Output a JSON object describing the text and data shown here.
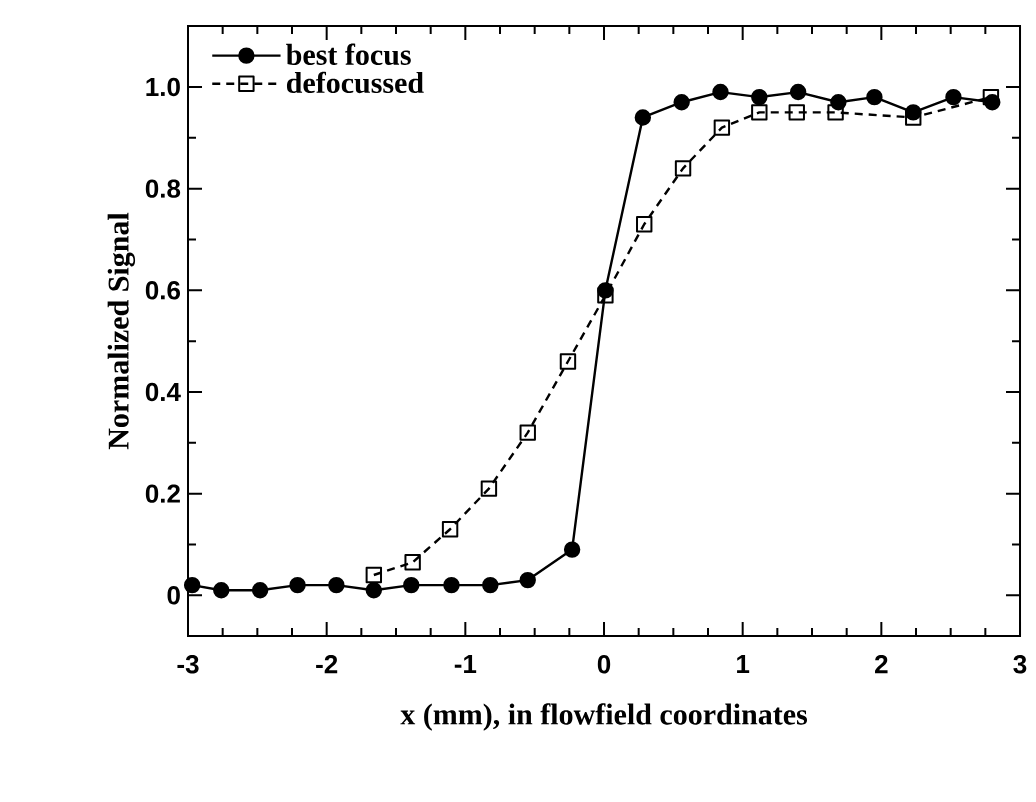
{
  "chart_data": {
    "type": "line",
    "xlabel": "x (mm), in flowfield coordinates",
    "ylabel": "Normalized Signal",
    "xlim": [
      -3,
      3
    ],
    "ylim": [
      -0.08,
      1.12
    ],
    "xticks": [
      -3,
      -2,
      -1,
      0,
      1,
      2,
      3
    ],
    "yticks": [
      0,
      0.2,
      0.4,
      0.6,
      0.8,
      {
        "value": 1,
        "label": "1.0"
      }
    ],
    "legend": "top left",
    "grid": false,
    "series": [
      {
        "name": "best focus",
        "color": "#000000",
        "marker": "circle",
        "line_style": "solid",
        "x": [
          -2.97,
          -2.76,
          -2.48,
          -2.21,
          -1.93,
          -1.66,
          -1.39,
          -1.1,
          -0.82,
          -0.55,
          -0.23,
          0.01,
          0.28,
          0.56,
          0.84,
          1.12,
          1.4,
          1.69,
          1.95,
          2.23,
          2.52,
          2.8
        ],
        "values": [
          0.02,
          0.01,
          0.01,
          0.02,
          0.02,
          0.01,
          0.02,
          0.02,
          0.02,
          0.03,
          0.09,
          0.6,
          0.94,
          0.97,
          0.99,
          0.98,
          0.99,
          0.97,
          0.98,
          0.95,
          0.98,
          0.97
        ]
      },
      {
        "name": "defocussed",
        "color": "#000000",
        "marker": "square",
        "line_style": "dashed",
        "x": [
          -1.66,
          -1.38,
          -1.11,
          -0.83,
          -0.55,
          -0.26,
          0.01,
          0.29,
          0.57,
          0.85,
          1.12,
          1.39,
          1.67,
          2.23,
          2.79
        ],
        "values": [
          0.04,
          0.065,
          0.13,
          0.21,
          0.32,
          0.46,
          0.59,
          0.73,
          0.84,
          0.92,
          0.95,
          0.95,
          0.95,
          0.94,
          0.98
        ]
      }
    ]
  }
}
